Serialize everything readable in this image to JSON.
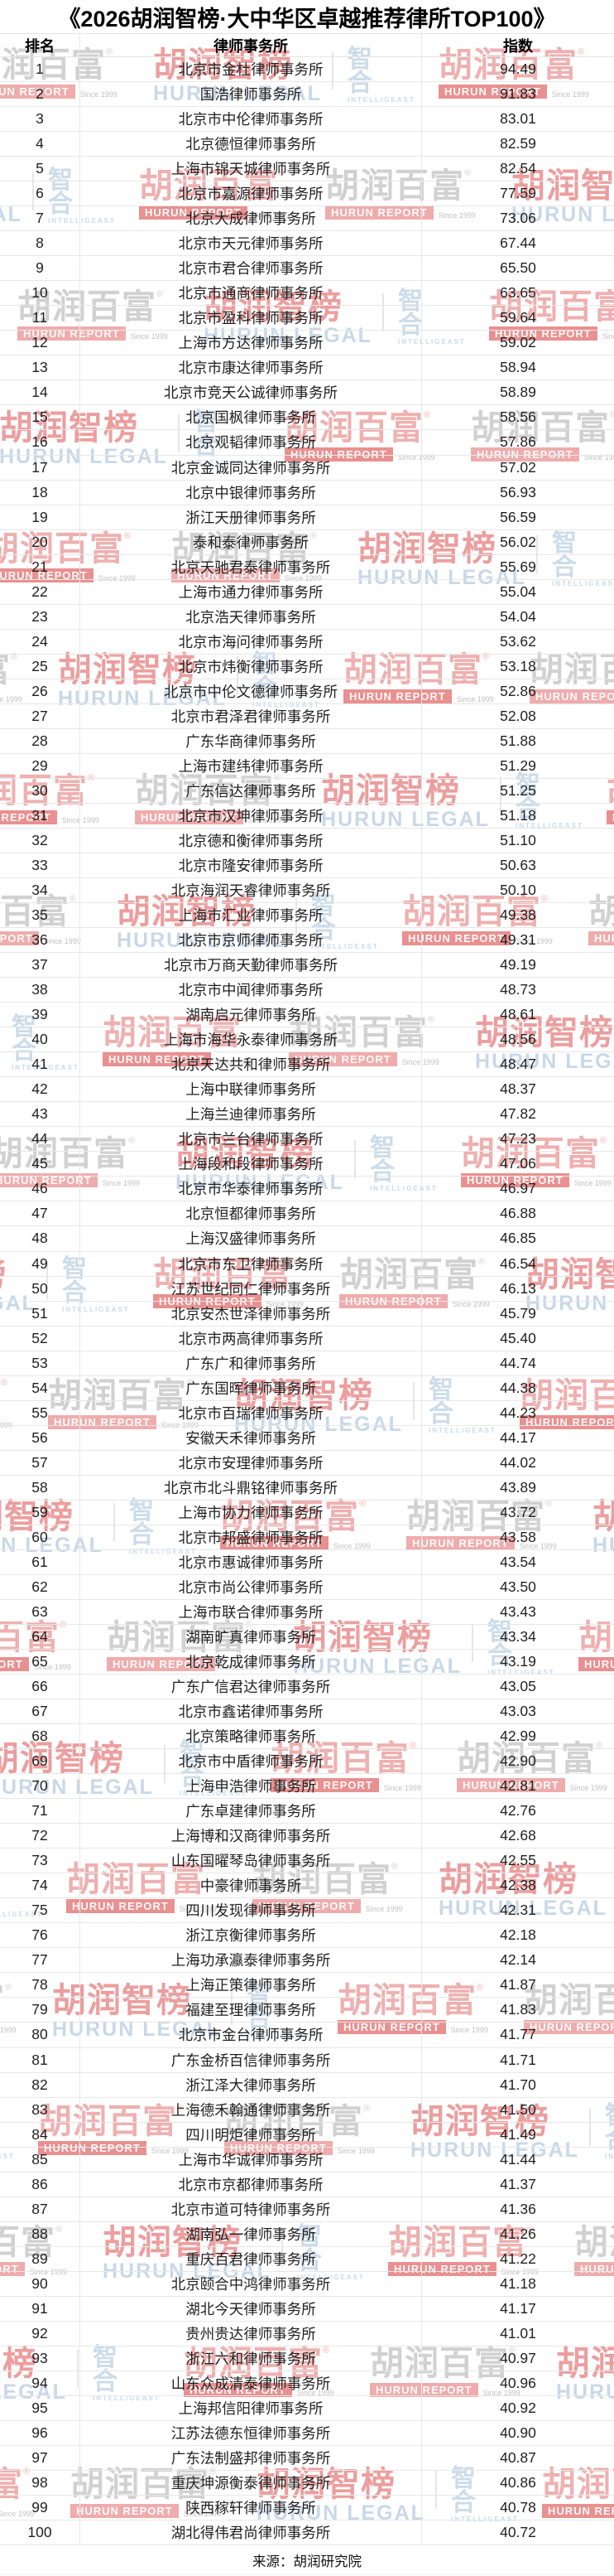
{
  "title": "《2026胡润智榜·大中华区卓越推荐律所TOP100》",
  "footer": {
    "source_label": "来源：胡润研究院"
  },
  "watermarks": {
    "brand_cn": "胡润百富",
    "brand_en": "HURUN REPORT",
    "since": "Since 1999",
    "legal_cn": "胡润智榜",
    "legal_en": "HURUN LEGAL",
    "zhihe_top": "智",
    "zhihe_bottom": "合",
    "zhihe_en": "INTELLIGEAST",
    "reg_mark": "®"
  },
  "colors": {
    "watermark_gray": "#c6c6c6",
    "watermark_red": "#e07070",
    "watermark_blue": "#c6d8e8",
    "border": "#e7e7e7",
    "text": "#1f1f1f"
  },
  "chart_data": {
    "type": "table",
    "title": "《2026胡润智榜·大中华区卓越推荐律所TOP100》",
    "columns": [
      "排名",
      "律师事务所",
      "指数"
    ],
    "source": "来源：胡润研究院",
    "rows": [
      [
        1,
        "北京市金杜律师事务所",
        "94.49"
      ],
      [
        2,
        "国浩律师事务所",
        "91.83"
      ],
      [
        3,
        "北京市中伦律师事务所",
        "83.01"
      ],
      [
        4,
        "北京德恒律师事务所",
        "82.59"
      ],
      [
        5,
        "上海市锦天城律师事务所",
        "82.54"
      ],
      [
        6,
        "北京市嘉源律师事务所",
        "77.59"
      ],
      [
        7,
        "北京大成律师事务所",
        "73.06"
      ],
      [
        8,
        "北京市天元律师事务所",
        "67.44"
      ],
      [
        9,
        "北京市君合律师事务所",
        "65.50"
      ],
      [
        10,
        "北京市通商律师事务所",
        "63.65"
      ],
      [
        11,
        "北京市盈科律师事务所",
        "59.64"
      ],
      [
        12,
        "上海市方达律师事务所",
        "59.02"
      ],
      [
        13,
        "北京市康达律师事务所",
        "58.94"
      ],
      [
        14,
        "北京市竞天公诚律师事务所",
        "58.89"
      ],
      [
        15,
        "北京国枫律师事务所",
        "58.56"
      ],
      [
        16,
        "北京观韬律师事务所",
        "57.86"
      ],
      [
        17,
        "北京金诚同达律师事务所",
        "57.02"
      ],
      [
        18,
        "北京中银律师事务所",
        "56.93"
      ],
      [
        19,
        "浙江天册律师事务所",
        "56.59"
      ],
      [
        20,
        "泰和泰律师事务所",
        "56.02"
      ],
      [
        21,
        "北京天驰君泰律师事务所",
        "55.69"
      ],
      [
        22,
        "上海市通力律师事务所",
        "55.04"
      ],
      [
        23,
        "北京浩天律师事务所",
        "54.04"
      ],
      [
        24,
        "北京市海问律师事务所",
        "53.62"
      ],
      [
        25,
        "北京市炜衡律师事务所",
        "53.18"
      ],
      [
        26,
        "北京市中伦文德律师事务所",
        "52.86"
      ],
      [
        27,
        "北京市君泽君律师事务所",
        "52.08"
      ],
      [
        28,
        "广东华商律师事务所",
        "51.88"
      ],
      [
        29,
        "上海市建纬律师事务所",
        "51.29"
      ],
      [
        30,
        "广东信达律师事务所",
        "51.25"
      ],
      [
        31,
        "北京市汉坤律师事务所",
        "51.18"
      ],
      [
        32,
        "北京德和衡律师事务所",
        "51.10"
      ],
      [
        33,
        "北京市隆安律师事务所",
        "50.63"
      ],
      [
        34,
        "北京海润天睿律师事务所",
        "50.10"
      ],
      [
        35,
        "上海市汇业律师事务所",
        "49.38"
      ],
      [
        36,
        "北京市京师律师事务所",
        "49.31"
      ],
      [
        37,
        "北京市万商天勤律师事务所",
        "49.19"
      ],
      [
        38,
        "北京市中闻律师事务所",
        "48.73"
      ],
      [
        39,
        "湖南启元律师事务所",
        "48.61"
      ],
      [
        40,
        "上海市海华永泰律师事务所",
        "48.56"
      ],
      [
        41,
        "北京天达共和律师事务所",
        "48.47"
      ],
      [
        42,
        "上海中联律师事务所",
        "48.37"
      ],
      [
        43,
        "上海兰迪律师事务所",
        "47.82"
      ],
      [
        44,
        "北京市兰台律师事务所",
        "47.23"
      ],
      [
        45,
        "上海段和段律师事务所",
        "47.06"
      ],
      [
        46,
        "北京市华泰律师事务所",
        "46.97"
      ],
      [
        47,
        "北京恒都律师事务所",
        "46.88"
      ],
      [
        48,
        "上海汉盛律师事务所",
        "46.85"
      ],
      [
        49,
        "北京市东卫律师事务所",
        "46.54"
      ],
      [
        50,
        "江苏世纪同仁律师事务所",
        "46.13"
      ],
      [
        51,
        "北京安杰世泽律师事务所",
        "45.79"
      ],
      [
        52,
        "北京市两高律师事务所",
        "45.40"
      ],
      [
        53,
        "广东广和律师事务所",
        "44.74"
      ],
      [
        54,
        "广东国晖律师事务所",
        "44.38"
      ],
      [
        55,
        "北京市百瑞律师事务所",
        "44.23"
      ],
      [
        56,
        "安徽天禾律师事务所",
        "44.17"
      ],
      [
        57,
        "北京市安理律师事务所",
        "44.02"
      ],
      [
        58,
        "北京市北斗鼎铭律师事务所",
        "43.89"
      ],
      [
        59,
        "上海市协力律师事务所",
        "43.72"
      ],
      [
        60,
        "北京市邦盛律师事务所",
        "43.58"
      ],
      [
        61,
        "北京市惠诚律师事务所",
        "43.54"
      ],
      [
        62,
        "北京市尚公律师事务所",
        "43.50"
      ],
      [
        63,
        "上海市联合律师事务所",
        "43.43"
      ],
      [
        64,
        "湖南旷真律师事务所",
        "43.34"
      ],
      [
        65,
        "北京乾成律师事务所",
        "43.19"
      ],
      [
        66,
        "广东广信君达律师事务所",
        "43.05"
      ],
      [
        67,
        "北京市鑫诺律师事务所",
        "43.03"
      ],
      [
        68,
        "北京策略律师事务所",
        "42.99"
      ],
      [
        69,
        "北京市中盾律师事务所",
        "42.90"
      ],
      [
        70,
        "上海申浩律师事务所",
        "42.81"
      ],
      [
        71,
        "广东卓建律师事务所",
        "42.76"
      ],
      [
        72,
        "上海博和汉商律师事务所",
        "42.68"
      ],
      [
        73,
        "山东国曜琴岛律师事务所",
        "42.55"
      ],
      [
        74,
        "中豪律师事务所",
        "42.38"
      ],
      [
        75,
        "四川发现律师事务所",
        "42.31"
      ],
      [
        76,
        "浙江京衡律师事务所",
        "42.18"
      ],
      [
        77,
        "上海功承瀛泰律师事务所",
        "42.14"
      ],
      [
        78,
        "上海正策律师事务所",
        "41.87"
      ],
      [
        79,
        "福建至理律师事务所",
        "41.83"
      ],
      [
        80,
        "北京市金台律师事务所",
        "41.77"
      ],
      [
        81,
        "广东金桥百信律师事务所",
        "41.71"
      ],
      [
        82,
        "浙江泽大律师事务所",
        "41.70"
      ],
      [
        83,
        "上海德禾翰通律师事务所",
        "41.50"
      ],
      [
        84,
        "四川明炬律师事务所",
        "41.49"
      ],
      [
        85,
        "上海市华诚律师事务所",
        "41.44"
      ],
      [
        86,
        "北京市京都律师事务所",
        "41.37"
      ],
      [
        87,
        "北京市道可特律师事务所",
        "41.36"
      ],
      [
        88,
        "湖南弘一律师事务所",
        "41.26"
      ],
      [
        89,
        "重庆百君律师事务所",
        "41.22"
      ],
      [
        90,
        "北京颐合中鸿律师事务所",
        "41.18"
      ],
      [
        91,
        "湖北今天律师事务所",
        "41.17"
      ],
      [
        92,
        "贵州贵达律师事务所",
        "41.01"
      ],
      [
        93,
        "浙江六和律师事务所",
        "40.97"
      ],
      [
        94,
        "山东众成清泰律师事务所",
        "40.96"
      ],
      [
        95,
        "上海邦信阳律师事务所",
        "40.92"
      ],
      [
        96,
        "江苏法德东恒律师事务所",
        "40.90"
      ],
      [
        97,
        "广东法制盛邦律师事务所",
        "40.87"
      ],
      [
        98,
        "重庆坤源衡泰律师事务所",
        "40.86"
      ],
      [
        99,
        "陕西稼轩律师事务所",
        "40.78"
      ],
      [
        100,
        "湖北得伟君尚律师事务所",
        "40.72"
      ]
    ]
  }
}
